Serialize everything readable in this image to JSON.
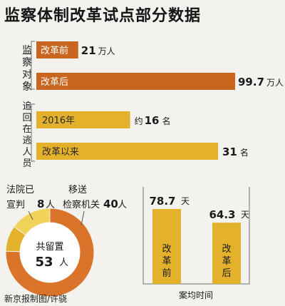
{
  "title": "监察体制改革试点部分数据",
  "colors": {
    "orange": "#d9742a",
    "orange_dark": "#c9651f",
    "yellow": "#e3b12c",
    "yellow_light": "#f2d35a",
    "gray_line": "#888888",
    "background": "#f4f2ee"
  },
  "chart_data": [
    {
      "type": "bar",
      "orientation": "horizontal",
      "group_label": "监察对象",
      "categories": [
        "改革前",
        "改革后"
      ],
      "values": [
        21,
        99.7
      ],
      "value_labels": [
        "21",
        "99.7"
      ],
      "unit": "万人"
    },
    {
      "type": "bar",
      "orientation": "horizontal",
      "group_label": "追回在逃人员",
      "categories": [
        "2016年",
        "改革以来"
      ],
      "values": [
        16,
        31
      ],
      "value_labels": [
        "16",
        "31"
      ],
      "value_prefixes": [
        "约",
        ""
      ],
      "unit": "名"
    },
    {
      "type": "pie",
      "style": "donut",
      "center_label": "共留置",
      "center_value": "53",
      "center_unit": "人",
      "slices": [
        {
          "label_line1": "法院已",
          "label_line2": "宣判",
          "value": 8,
          "value_label": "8",
          "unit": "人"
        },
        {
          "label_line1": "移送",
          "label_line2": "检察机关",
          "value": 40,
          "value_label": "40",
          "unit": "人"
        },
        {
          "label_line1": "",
          "label_line2": "",
          "value": 5,
          "value_label": "",
          "unit": ""
        }
      ]
    },
    {
      "type": "bar",
      "orientation": "vertical",
      "categories": [
        "改革前",
        "改革后"
      ],
      "values": [
        78.7,
        64.3
      ],
      "value_labels": [
        "78.7",
        "64.3"
      ],
      "unit": "天",
      "xlabel": "案均时间"
    }
  ],
  "credit": "新京报制图/许骁"
}
